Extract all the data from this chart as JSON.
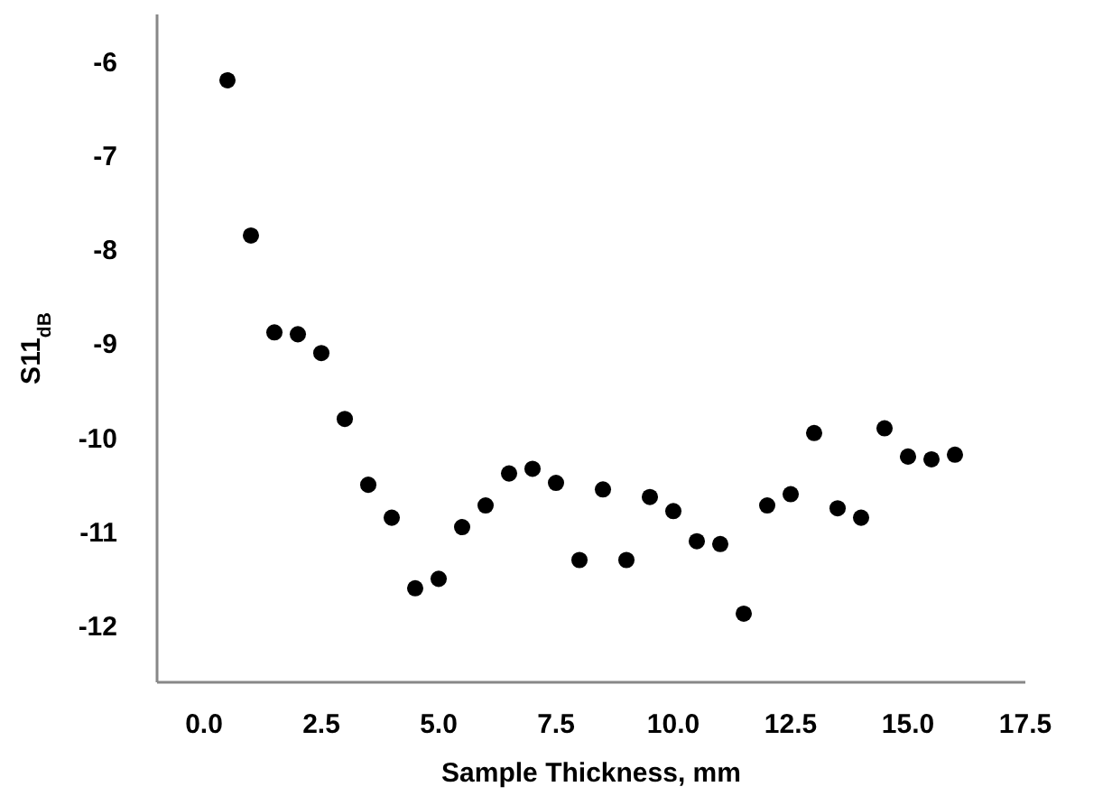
{
  "chart_data": {
    "type": "scatter",
    "xlabel": "Sample Thickness, mm",
    "ylabel": "S11$_{dB}$",
    "marker": "circle",
    "grid": false,
    "xlim": [
      -1,
      17.5
    ],
    "xticks": [
      {
        "value": 0,
        "label": "0.0"
      },
      {
        "value": 2.5,
        "label": "2.5"
      },
      {
        "value": 5,
        "label": "5.0"
      },
      {
        "value": 7.5,
        "label": "7.5"
      },
      {
        "value": 10,
        "label": "10.0"
      },
      {
        "value": 12.5,
        "label": "12.5"
      },
      {
        "value": 15,
        "label": "15.0"
      },
      {
        "value": 17.5,
        "label": "17.5"
      }
    ],
    "ylim": [
      -12.6,
      -5.5
    ],
    "yticks": [
      -12,
      -11,
      -10,
      -9,
      -8,
      -7,
      -6
    ],
    "series": [
      {
        "color": "#000000",
        "x": [
          0.5,
          1,
          1.5,
          2,
          2.5,
          3,
          3.5,
          4,
          4.5,
          5,
          5.5,
          6,
          6.5,
          7,
          7.5,
          8,
          8.5,
          9,
          9.5,
          10,
          10.5,
          11,
          11.5,
          12,
          12.5,
          13,
          13.5,
          14,
          14.5,
          15,
          15.5,
          16
        ],
        "values": [
          -6.2,
          -7.85,
          -8.88,
          -8.9,
          -9.1,
          -9.8,
          -10.5,
          -10.85,
          -11.6,
          -11.5,
          -10.95,
          -10.72,
          -10.38,
          -10.33,
          -10.48,
          -11.3,
          -10.55,
          -11.3,
          -10.63,
          -10.78,
          -11.1,
          -11.13,
          -11.87,
          -10.72,
          -10.6,
          -9.95,
          -10.75,
          -10.85,
          -9.9,
          -10.2,
          -10.23,
          -10.18
        ]
      }
    ]
  }
}
